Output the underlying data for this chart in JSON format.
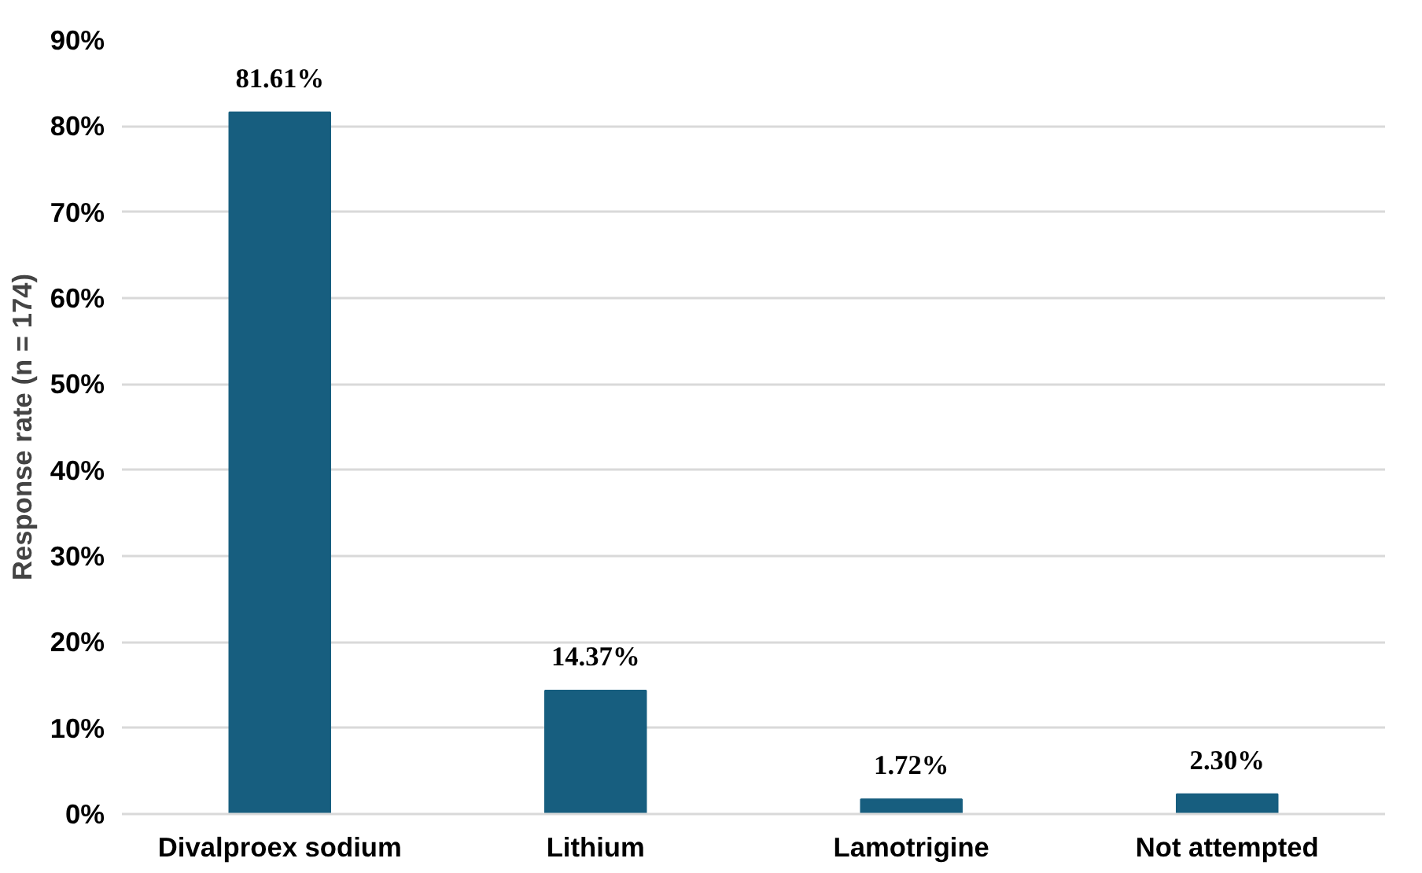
{
  "chart_data": {
    "type": "bar",
    "ylabel": "Response rate (n = 174)",
    "categories": [
      "Divalproex sodium",
      "Lithium",
      "Lamotrigine",
      "Not attempted"
    ],
    "values": [
      81.61,
      14.37,
      1.72,
      2.3
    ],
    "color": "#175e7f",
    "value_labels": [
      "81.61%",
      "14.37%",
      "1.72%",
      "2.30%"
    ],
    "ylim": [
      0,
      90
    ],
    "yticks": [
      {
        "value": 0,
        "label": "0%"
      },
      {
        "value": 10,
        "label": "10%"
      },
      {
        "value": 20,
        "label": "20%"
      },
      {
        "value": 30,
        "label": "30%"
      },
      {
        "value": 40,
        "label": "40%"
      },
      {
        "value": 50,
        "label": "50%"
      },
      {
        "value": 60,
        "label": "60%"
      },
      {
        "value": 70,
        "label": "70%"
      },
      {
        "value": 80,
        "label": "80%"
      },
      {
        "value": 90,
        "label": "90%"
      }
    ],
    "grid": "y"
  }
}
